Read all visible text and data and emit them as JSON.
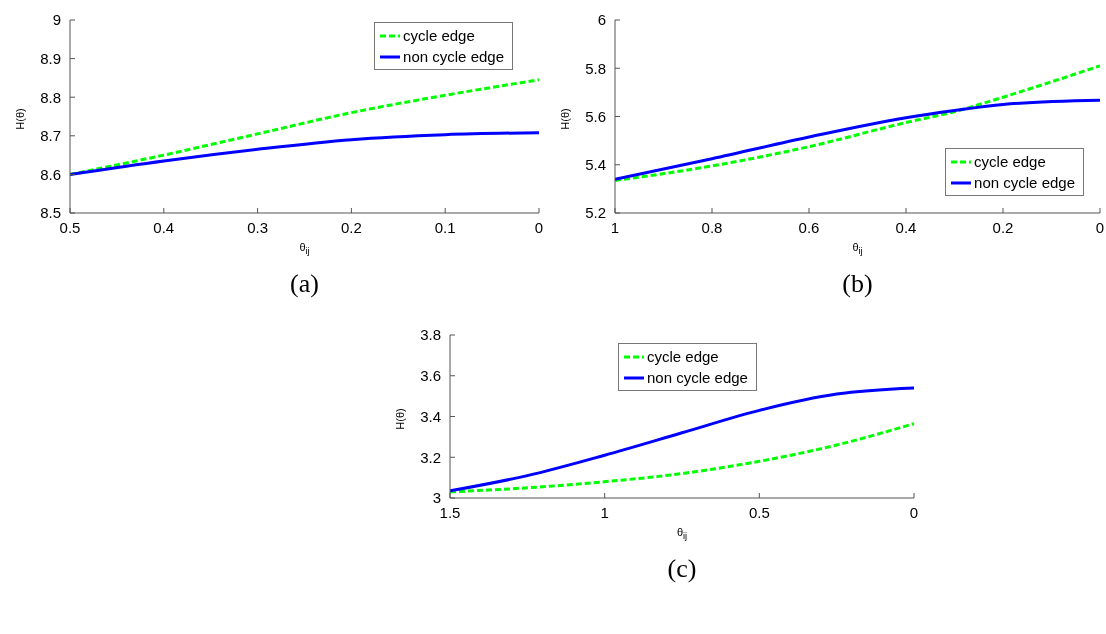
{
  "chart_data": [
    {
      "type": "line",
      "xlabel": "θ$_{ij}$",
      "ylabel": "H(θ)",
      "annotations": [
        "(a)"
      ],
      "x": [
        0.5,
        0.4,
        0.3,
        0.2,
        0.1,
        0
      ],
      "xlim": [
        0.5,
        0
      ],
      "xticks": [
        0.5,
        0.4,
        0.3,
        0.2,
        0.1,
        0
      ],
      "ylim": [
        8.5,
        9
      ],
      "yticks": [
        8.5,
        8.6,
        8.7,
        8.8,
        8.9,
        9
      ],
      "grid": false,
      "legend": "top right",
      "marker": "none",
      "series": [
        {
          "name": "cycle edge",
          "color": "#00ff00",
          "line_style": "dashed",
          "values": [
            8.6,
            8.65,
            8.705,
            8.76,
            8.805,
            8.845
          ]
        },
        {
          "name": "non cycle edge",
          "color": "#0000ff",
          "line_style": "solid",
          "values": [
            8.6,
            8.635,
            8.665,
            8.69,
            8.703,
            8.708
          ]
        }
      ]
    },
    {
      "type": "line",
      "xlabel": "θ$_{ij}$",
      "ylabel": "H(θ)",
      "annotations": [
        "(b)"
      ],
      "x": [
        1,
        0.8,
        0.6,
        0.4,
        0.3,
        0.2,
        0
      ],
      "xlim": [
        1,
        0
      ],
      "xticks": [
        1,
        0.8,
        0.6,
        0.4,
        0.2,
        0
      ],
      "ylim": [
        5.2,
        6
      ],
      "yticks": [
        5.2,
        5.4,
        5.6,
        5.8,
        6
      ],
      "grid": false,
      "legend": "right",
      "marker": "none",
      "series": [
        {
          "name": "cycle edge",
          "color": "#00ff00",
          "line_style": "dashed",
          "values": [
            5.335,
            5.395,
            5.475,
            5.575,
            5.62,
            5.68,
            5.81
          ]
        },
        {
          "name": "non cycle edge",
          "color": "#0000ff",
          "line_style": "solid",
          "values": [
            5.34,
            5.425,
            5.515,
            5.595,
            5.625,
            5.65,
            5.667
          ]
        }
      ]
    },
    {
      "type": "line",
      "xlabel": "θ$_{ij}$",
      "ylabel": "H(θ)",
      "annotations": [
        "(c)"
      ],
      "x": [
        1.5,
        1.25,
        1,
        0.75,
        0.5,
        0.25,
        0
      ],
      "xlim": [
        1.5,
        0
      ],
      "xticks": [
        1.5,
        1,
        0.5,
        0
      ],
      "ylim": [
        3,
        3.8
      ],
      "yticks": [
        3,
        3.2,
        3.4,
        3.6,
        3.8
      ],
      "grid": false,
      "legend": "top",
      "marker": "none",
      "series": [
        {
          "name": "cycle edge",
          "color": "#00ff00",
          "line_style": "dashed",
          "values": [
            3.03,
            3.05,
            3.08,
            3.12,
            3.18,
            3.26,
            3.365
          ]
        },
        {
          "name": "non cycle edge",
          "color": "#0000ff",
          "line_style": "solid",
          "values": [
            3.035,
            3.11,
            3.21,
            3.32,
            3.43,
            3.51,
            3.54
          ]
        }
      ]
    }
  ]
}
